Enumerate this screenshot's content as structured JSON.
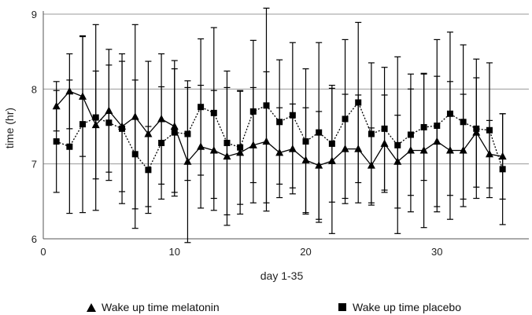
{
  "chart_data": {
    "type": "line",
    "title": "",
    "xlabel": "day 1-35",
    "ylabel": "time (hr)",
    "xlim": [
      0,
      37
    ],
    "ylim": [
      6,
      9
    ],
    "x_ticks": [
      0,
      10,
      20,
      30
    ],
    "y_ticks": [
      6,
      7,
      8,
      9
    ],
    "grid": "horizontal",
    "legend_position": "bottom",
    "x": [
      1,
      2,
      3,
      4,
      5,
      6,
      7,
      8,
      9,
      10,
      11,
      12,
      13,
      14,
      15,
      16,
      17,
      18,
      19,
      20,
      21,
      22,
      23,
      24,
      25,
      26,
      27,
      28,
      29,
      30,
      31,
      32,
      33,
      34,
      35
    ],
    "series": [
      {
        "name": "Wake up time melatonin",
        "marker": "triangle",
        "line_style": "solid",
        "values": [
          7.77,
          7.97,
          7.9,
          7.52,
          7.71,
          7.5,
          7.63,
          7.4,
          7.6,
          7.5,
          7.03,
          7.23,
          7.18,
          7.1,
          7.15,
          7.25,
          7.3,
          7.15,
          7.2,
          7.05,
          6.98,
          7.04,
          7.2,
          7.2,
          6.98,
          7.27,
          7.03,
          7.18,
          7.18,
          7.3,
          7.18,
          7.18,
          7.42,
          7.13,
          7.1
        ],
        "error": [
          0.33,
          0.5,
          0.8,
          0.72,
          0.82,
          0.87,
          1.23,
          0.97,
          0.87,
          0.88,
          1.08,
          0.82,
          0.8,
          0.92,
          0.82,
          0.77,
          0.93,
          0.6,
          0.6,
          0.7,
          0.72,
          0.97,
          0.73,
          0.72,
          0.5,
          0.65,
          0.62,
          0.82,
          1.03,
          0.87,
          0.92,
          0.75,
          0.73,
          0.45,
          0.57
        ]
      },
      {
        "name": "Wake up time placebo",
        "marker": "square",
        "line_style": "dotted",
        "values": [
          7.3,
          7.23,
          7.53,
          7.62,
          7.55,
          7.47,
          7.13,
          6.92,
          7.28,
          7.42,
          7.4,
          7.76,
          7.68,
          7.28,
          7.22,
          7.7,
          7.78,
          7.56,
          7.65,
          7.3,
          7.42,
          7.27,
          7.6,
          7.82,
          7.4,
          7.47,
          7.25,
          7.39,
          7.49,
          7.51,
          7.67,
          7.56,
          7.47,
          7.45,
          6.93
        ],
        "error": [
          0.68,
          0.89,
          1.18,
          1.24,
          0.77,
          1.0,
          0.99,
          0.58,
          0.75,
          0.85,
          0.62,
          0.91,
          1.14,
          0.96,
          0.76,
          0.95,
          1.3,
          0.83,
          0.97,
          0.97,
          1.2,
          0.78,
          1.06,
          1.07,
          0.95,
          0.82,
          1.18,
          0.81,
          0.71,
          1.15,
          1.09,
          1.03,
          0.93,
          0.9,
          0.74
        ]
      }
    ],
    "legend": [
      {
        "label": "Wake up time melatonin",
        "marker": "triangle"
      },
      {
        "label": "Wake up time placebo",
        "marker": "square"
      }
    ],
    "colors": {
      "marks": "#000000",
      "grid": "#9a9a9a",
      "axis": "#555555"
    }
  }
}
